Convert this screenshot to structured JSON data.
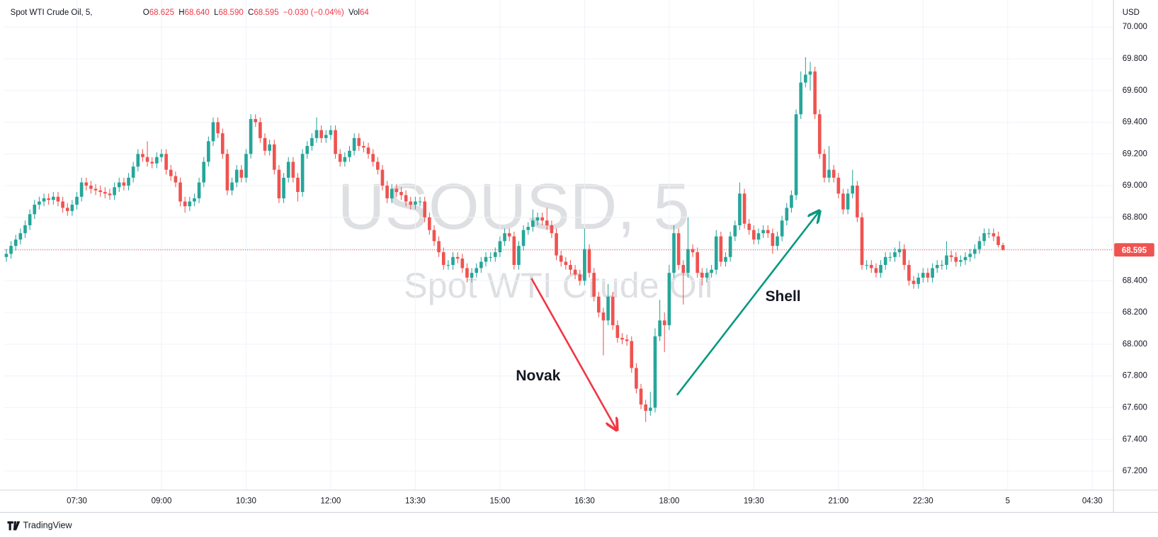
{
  "chart_data": {
    "type": "candlestick",
    "symbol": "Spot WTI Crude Oil, 5,",
    "ohlc": [
      {
        "key": "O",
        "value": "68.625"
      },
      {
        "key": "H",
        "value": "68.640"
      },
      {
        "key": "L",
        "value": "68.590"
      },
      {
        "key": "C",
        "value": "68.595"
      }
    ],
    "change": "−0.030 (−0.04%)",
    "volume_key": "Vol",
    "volume": "64",
    "currency": "USD",
    "watermark": "USOUSD, 5",
    "watermark_subtitle": "Spot WTI Crude Oil",
    "colors": {
      "up": "#26a69a",
      "down": "#ef5350"
    },
    "grid": true,
    "candles": [
      [
        68.55,
        68.6,
        68.52,
        68.57
      ],
      [
        68.57,
        68.65,
        68.54,
        68.62
      ],
      [
        68.62,
        68.69,
        68.59,
        68.66
      ],
      [
        68.66,
        68.73,
        68.63,
        68.7
      ],
      [
        68.7,
        68.78,
        68.67,
        68.75
      ],
      [
        68.75,
        68.85,
        68.72,
        68.82
      ],
      [
        68.82,
        68.91,
        68.79,
        68.88
      ],
      [
        68.88,
        68.93,
        68.85,
        68.9
      ],
      [
        68.9,
        68.95,
        68.87,
        68.92
      ],
      [
        68.92,
        68.95,
        68.88,
        68.91
      ],
      [
        68.91,
        68.96,
        68.88,
        68.93
      ],
      [
        68.93,
        68.96,
        68.87,
        68.9
      ],
      [
        68.9,
        68.93,
        68.83,
        68.86
      ],
      [
        68.86,
        68.89,
        68.81,
        68.84
      ],
      [
        68.84,
        68.91,
        68.81,
        68.88
      ],
      [
        68.88,
        68.96,
        68.85,
        68.93
      ],
      [
        68.93,
        69.05,
        68.9,
        69.02
      ],
      [
        69.02,
        69.05,
        68.97,
        69.0
      ],
      [
        69.0,
        69.03,
        68.95,
        68.98
      ],
      [
        68.98,
        69.01,
        68.94,
        68.97
      ],
      [
        68.97,
        69.0,
        68.93,
        68.96
      ],
      [
        68.96,
        68.99,
        68.92,
        68.95
      ],
      [
        68.95,
        68.98,
        68.91,
        68.94
      ],
      [
        68.94,
        69.02,
        68.91,
        68.99
      ],
      [
        68.99,
        69.05,
        68.96,
        69.02
      ],
      [
        69.02,
        69.05,
        68.97,
        69.0
      ],
      [
        69.0,
        69.08,
        68.97,
        69.05
      ],
      [
        69.05,
        69.15,
        69.02,
        69.12
      ],
      [
        69.12,
        69.23,
        69.09,
        69.2
      ],
      [
        69.2,
        69.23,
        69.15,
        69.18
      ],
      [
        69.18,
        69.28,
        69.12,
        69.15
      ],
      [
        69.15,
        69.18,
        69.11,
        69.14
      ],
      [
        69.14,
        69.21,
        69.11,
        69.18
      ],
      [
        69.18,
        69.23,
        69.15,
        69.2
      ],
      [
        69.2,
        69.23,
        69.07,
        69.1
      ],
      [
        69.1,
        69.13,
        69.03,
        69.06
      ],
      [
        69.06,
        69.09,
        68.99,
        69.02
      ],
      [
        69.02,
        69.05,
        68.87,
        68.9
      ],
      [
        68.9,
        68.93,
        68.83,
        68.87
      ],
      [
        68.87,
        68.93,
        68.84,
        68.9
      ],
      [
        68.9,
        68.95,
        68.87,
        68.92
      ],
      [
        68.92,
        69.05,
        68.89,
        69.02
      ],
      [
        69.02,
        69.18,
        68.99,
        69.15
      ],
      [
        69.15,
        69.31,
        69.12,
        69.28
      ],
      [
        69.28,
        69.43,
        69.25,
        69.4
      ],
      [
        69.4,
        69.43,
        69.3,
        69.33
      ],
      [
        69.33,
        69.36,
        69.17,
        69.2
      ],
      [
        69.2,
        69.23,
        68.94,
        68.97
      ],
      [
        68.97,
        69.05,
        68.94,
        69.02
      ],
      [
        69.02,
        69.13,
        68.99,
        69.1
      ],
      [
        69.1,
        69.13,
        69.02,
        69.05
      ],
      [
        69.05,
        69.23,
        69.02,
        69.2
      ],
      [
        69.2,
        69.45,
        69.17,
        69.42
      ],
      [
        69.42,
        69.45,
        69.37,
        69.4
      ],
      [
        69.4,
        69.43,
        69.27,
        69.3
      ],
      [
        69.3,
        69.33,
        69.19,
        69.22
      ],
      [
        69.22,
        69.29,
        69.19,
        69.26
      ],
      [
        69.26,
        69.29,
        69.07,
        69.1
      ],
      [
        69.1,
        69.13,
        68.89,
        68.92
      ],
      [
        68.92,
        69.08,
        68.89,
        69.05
      ],
      [
        69.05,
        69.18,
        69.02,
        69.15
      ],
      [
        69.15,
        69.18,
        69.02,
        69.05
      ],
      [
        69.05,
        69.08,
        68.9,
        68.96
      ],
      [
        68.96,
        69.23,
        68.93,
        69.2
      ],
      [
        69.2,
        69.28,
        69.17,
        69.25
      ],
      [
        69.25,
        69.33,
        69.22,
        69.3
      ],
      [
        69.3,
        69.43,
        69.27,
        69.35
      ],
      [
        69.35,
        69.38,
        69.27,
        69.3
      ],
      [
        69.3,
        69.35,
        69.27,
        69.32
      ],
      [
        69.32,
        69.38,
        69.29,
        69.35
      ],
      [
        69.35,
        69.38,
        69.17,
        69.2
      ],
      [
        69.2,
        69.23,
        69.12,
        69.15
      ],
      [
        69.15,
        69.21,
        69.12,
        69.18
      ],
      [
        69.18,
        69.25,
        69.15,
        69.22
      ],
      [
        69.22,
        69.33,
        69.19,
        69.3
      ],
      [
        69.3,
        69.33,
        69.22,
        69.25
      ],
      [
        69.25,
        69.28,
        69.21,
        69.24
      ],
      [
        69.24,
        69.27,
        69.17,
        69.2
      ],
      [
        69.2,
        69.23,
        69.12,
        69.15
      ],
      [
        69.15,
        69.18,
        69.07,
        69.1
      ],
      [
        69.1,
        69.13,
        68.97,
        69.0
      ],
      [
        69.0,
        69.03,
        68.89,
        68.92
      ],
      [
        68.92,
        69.01,
        68.89,
        68.98
      ],
      [
        68.98,
        69.01,
        68.93,
        68.96
      ],
      [
        68.96,
        68.99,
        68.91,
        68.94
      ],
      [
        68.94,
        68.97,
        68.87,
        68.9
      ],
      [
        68.9,
        68.93,
        68.85,
        68.88
      ],
      [
        68.88,
        68.93,
        68.85,
        68.9
      ],
      [
        68.9,
        68.93,
        68.87,
        68.9
      ],
      [
        68.9,
        68.93,
        68.77,
        68.8
      ],
      [
        68.8,
        68.83,
        68.69,
        68.72
      ],
      [
        68.72,
        68.75,
        68.62,
        68.65
      ],
      [
        68.65,
        68.68,
        68.55,
        68.58
      ],
      [
        68.58,
        68.61,
        68.47,
        68.5
      ],
      [
        68.5,
        68.53,
        68.47,
        68.5
      ],
      [
        68.5,
        68.58,
        68.47,
        68.55
      ],
      [
        68.55,
        68.58,
        68.51,
        68.54
      ],
      [
        68.54,
        68.57,
        68.45,
        68.48
      ],
      [
        68.48,
        68.51,
        68.39,
        68.42
      ],
      [
        68.42,
        68.48,
        68.39,
        68.45
      ],
      [
        68.45,
        68.51,
        68.42,
        68.48
      ],
      [
        68.48,
        68.55,
        68.45,
        68.52
      ],
      [
        68.52,
        68.58,
        68.49,
        68.55
      ],
      [
        68.55,
        68.58,
        68.52,
        68.55
      ],
      [
        68.55,
        68.61,
        68.52,
        68.58
      ],
      [
        68.58,
        68.68,
        68.55,
        68.65
      ],
      [
        68.65,
        68.73,
        68.62,
        68.7
      ],
      [
        68.7,
        68.73,
        68.65,
        68.68
      ],
      [
        68.68,
        68.71,
        68.47,
        68.5
      ],
      [
        68.5,
        68.65,
        68.47,
        68.62
      ],
      [
        68.62,
        68.75,
        68.59,
        68.72
      ],
      [
        68.72,
        68.77,
        68.69,
        68.74
      ],
      [
        68.74,
        68.85,
        68.71,
        68.78
      ],
      [
        68.78,
        68.83,
        68.75,
        68.8
      ],
      [
        68.8,
        68.83,
        68.75,
        68.78
      ],
      [
        68.78,
        68.86,
        68.72,
        68.75
      ],
      [
        68.75,
        68.78,
        68.67,
        68.7
      ],
      [
        68.7,
        68.73,
        68.53,
        68.56
      ],
      [
        68.56,
        68.59,
        68.49,
        68.52
      ],
      [
        68.52,
        68.55,
        68.47,
        68.5
      ],
      [
        68.5,
        68.53,
        68.44,
        68.47
      ],
      [
        68.47,
        68.5,
        68.41,
        68.44
      ],
      [
        68.44,
        68.47,
        68.37,
        68.4
      ],
      [
        68.4,
        68.73,
        68.37,
        68.6
      ],
      [
        68.6,
        68.63,
        68.42,
        68.45
      ],
      [
        68.45,
        68.48,
        68.27,
        68.3
      ],
      [
        68.3,
        68.33,
        68.17,
        68.2
      ],
      [
        68.2,
        68.23,
        67.93,
        68.15
      ],
      [
        68.15,
        68.38,
        68.12,
        68.3
      ],
      [
        68.3,
        68.33,
        68.09,
        68.12
      ],
      [
        68.12,
        68.15,
        68.01,
        68.04
      ],
      [
        68.04,
        68.07,
        68.0,
        68.03
      ],
      [
        68.03,
        68.06,
        67.99,
        68.02
      ],
      [
        68.02,
        68.05,
        67.82,
        67.85
      ],
      [
        67.85,
        67.88,
        67.69,
        67.72
      ],
      [
        67.72,
        67.75,
        67.59,
        67.62
      ],
      [
        67.62,
        67.65,
        67.51,
        67.58
      ],
      [
        67.58,
        67.7,
        67.55,
        67.6
      ],
      [
        67.6,
        68.1,
        67.57,
        68.05
      ],
      [
        68.05,
        68.28,
        68.02,
        68.15
      ],
      [
        68.15,
        68.2,
        67.95,
        68.12
      ],
      [
        68.12,
        68.5,
        68.09,
        68.45
      ],
      [
        68.45,
        68.75,
        68.42,
        68.7
      ],
      [
        68.7,
        68.73,
        68.47,
        68.5
      ],
      [
        68.5,
        68.53,
        68.25,
        68.45
      ],
      [
        68.45,
        68.8,
        68.42,
        68.6
      ],
      [
        68.6,
        68.63,
        68.55,
        68.58
      ],
      [
        68.58,
        68.61,
        68.42,
        68.45
      ],
      [
        68.45,
        68.48,
        68.37,
        68.42
      ],
      [
        68.42,
        68.48,
        68.39,
        68.45
      ],
      [
        68.45,
        68.5,
        68.42,
        68.47
      ],
      [
        68.47,
        68.72,
        68.44,
        68.68
      ],
      [
        68.68,
        68.71,
        68.49,
        68.52
      ],
      [
        68.52,
        68.58,
        68.49,
        68.55
      ],
      [
        68.55,
        68.71,
        68.52,
        68.68
      ],
      [
        68.68,
        68.78,
        68.65,
        68.75
      ],
      [
        68.75,
        69.02,
        68.72,
        68.95
      ],
      [
        68.95,
        68.98,
        68.73,
        68.76
      ],
      [
        68.76,
        68.79,
        68.69,
        68.72
      ],
      [
        68.72,
        68.75,
        68.63,
        68.66
      ],
      [
        68.66,
        68.73,
        68.63,
        68.7
      ],
      [
        68.7,
        68.75,
        68.67,
        68.72
      ],
      [
        68.72,
        68.75,
        68.67,
        68.7
      ],
      [
        68.7,
        68.73,
        68.57,
        68.62
      ],
      [
        68.62,
        68.71,
        68.59,
        68.68
      ],
      [
        68.68,
        68.81,
        68.65,
        68.78
      ],
      [
        68.78,
        68.89,
        68.75,
        68.86
      ],
      [
        68.86,
        68.97,
        68.83,
        68.94
      ],
      [
        68.94,
        69.48,
        68.91,
        69.45
      ],
      [
        69.45,
        69.72,
        69.42,
        69.65
      ],
      [
        69.65,
        69.81,
        69.62,
        69.7
      ],
      [
        69.7,
        69.78,
        69.6,
        69.72
      ],
      [
        69.72,
        69.75,
        69.42,
        69.45
      ],
      [
        69.45,
        69.48,
        69.17,
        69.2
      ],
      [
        69.2,
        69.23,
        69.02,
        69.05
      ],
      [
        69.05,
        69.25,
        69.02,
        69.1
      ],
      [
        69.1,
        69.13,
        69.02,
        69.05
      ],
      [
        69.05,
        69.08,
        68.92,
        68.95
      ],
      [
        68.95,
        68.98,
        68.82,
        68.85
      ],
      [
        68.85,
        68.98,
        68.82,
        68.95
      ],
      [
        68.95,
        69.1,
        68.92,
        69.0
      ],
      [
        69.0,
        69.03,
        68.77,
        68.8
      ],
      [
        68.8,
        68.83,
        68.47,
        68.5
      ],
      [
        68.5,
        68.53,
        68.47,
        68.5
      ],
      [
        68.5,
        68.53,
        68.45,
        68.48
      ],
      [
        68.48,
        68.51,
        68.42,
        68.45
      ],
      [
        68.45,
        68.53,
        68.42,
        68.5
      ],
      [
        68.5,
        68.58,
        68.47,
        68.55
      ],
      [
        68.55,
        68.58,
        68.52,
        68.55
      ],
      [
        68.55,
        68.61,
        68.52,
        68.58
      ],
      [
        68.58,
        68.65,
        68.55,
        68.6
      ],
      [
        68.6,
        68.63,
        68.47,
        68.5
      ],
      [
        68.5,
        68.53,
        68.37,
        68.4
      ],
      [
        68.4,
        68.43,
        68.35,
        68.38
      ],
      [
        68.38,
        68.45,
        68.35,
        68.42
      ],
      [
        68.42,
        68.48,
        68.39,
        68.45
      ],
      [
        68.45,
        68.48,
        68.39,
        68.42
      ],
      [
        68.42,
        68.51,
        68.39,
        68.48
      ],
      [
        68.48,
        68.53,
        68.45,
        68.5
      ],
      [
        68.5,
        68.53,
        68.47,
        68.5
      ],
      [
        68.5,
        68.65,
        68.47,
        68.56
      ],
      [
        68.56,
        68.59,
        68.52,
        68.55
      ],
      [
        68.55,
        68.58,
        68.49,
        68.52
      ],
      [
        68.52,
        68.56,
        68.49,
        68.53
      ],
      [
        68.53,
        68.58,
        68.5,
        68.55
      ],
      [
        68.55,
        68.6,
        68.52,
        68.57
      ],
      [
        68.57,
        68.63,
        68.54,
        68.6
      ],
      [
        68.6,
        68.68,
        68.57,
        68.65
      ],
      [
        68.65,
        68.73,
        68.62,
        68.7
      ],
      [
        68.7,
        68.73,
        68.67,
        68.7
      ],
      [
        68.7,
        68.73,
        68.65,
        68.68
      ],
      [
        68.68,
        68.71,
        68.61,
        68.625
      ],
      [
        68.625,
        68.64,
        68.59,
        68.595
      ]
    ],
    "last_price": {
      "value": 68.595,
      "label": "68.595"
    },
    "xlim": [
      -0.4,
      235.5
    ],
    "xticks": [
      {
        "value": 15,
        "label": "07:30"
      },
      {
        "value": 33,
        "label": "09:00"
      },
      {
        "value": 51,
        "label": "10:30"
      },
      {
        "value": 69,
        "label": "12:00"
      },
      {
        "value": 87,
        "label": "13:30"
      },
      {
        "value": 105,
        "label": "15:00"
      },
      {
        "value": 123,
        "label": "16:30"
      },
      {
        "value": 141,
        "label": "18:00"
      },
      {
        "value": 159,
        "label": "19:30"
      },
      {
        "value": 177,
        "label": "21:00"
      },
      {
        "value": 195,
        "label": "22:30"
      },
      {
        "value": 213,
        "label": "5"
      },
      {
        "value": 231,
        "label": "04:30"
      }
    ],
    "ylim": [
      67.08,
      70.17
    ],
    "yticks": [
      {
        "value": 67.2,
        "label": "67.200"
      },
      {
        "value": 67.4,
        "label": "67.400"
      },
      {
        "value": 67.6,
        "label": "67.600"
      },
      {
        "value": 67.8,
        "label": "67.800"
      },
      {
        "value": 68.0,
        "label": "68.000"
      },
      {
        "value": 68.2,
        "label": "68.200"
      },
      {
        "value": 68.4,
        "label": "68.400"
      },
      {
        "value": 68.6,
        "label": "68.600"
      },
      {
        "value": 68.8,
        "label": "68.800"
      },
      {
        "value": 69.0,
        "label": "69.000"
      },
      {
        "value": 69.2,
        "label": "69.200"
      },
      {
        "value": 69.4,
        "label": "69.400"
      },
      {
        "value": 69.6,
        "label": "69.600"
      },
      {
        "value": 69.8,
        "label": "69.800"
      },
      {
        "value": 70.0,
        "label": "70.000"
      }
    ],
    "annotations": [
      {
        "text": "Novak"
      },
      {
        "text": "Shell"
      }
    ]
  },
  "footer": {
    "brand": "TradingView"
  }
}
